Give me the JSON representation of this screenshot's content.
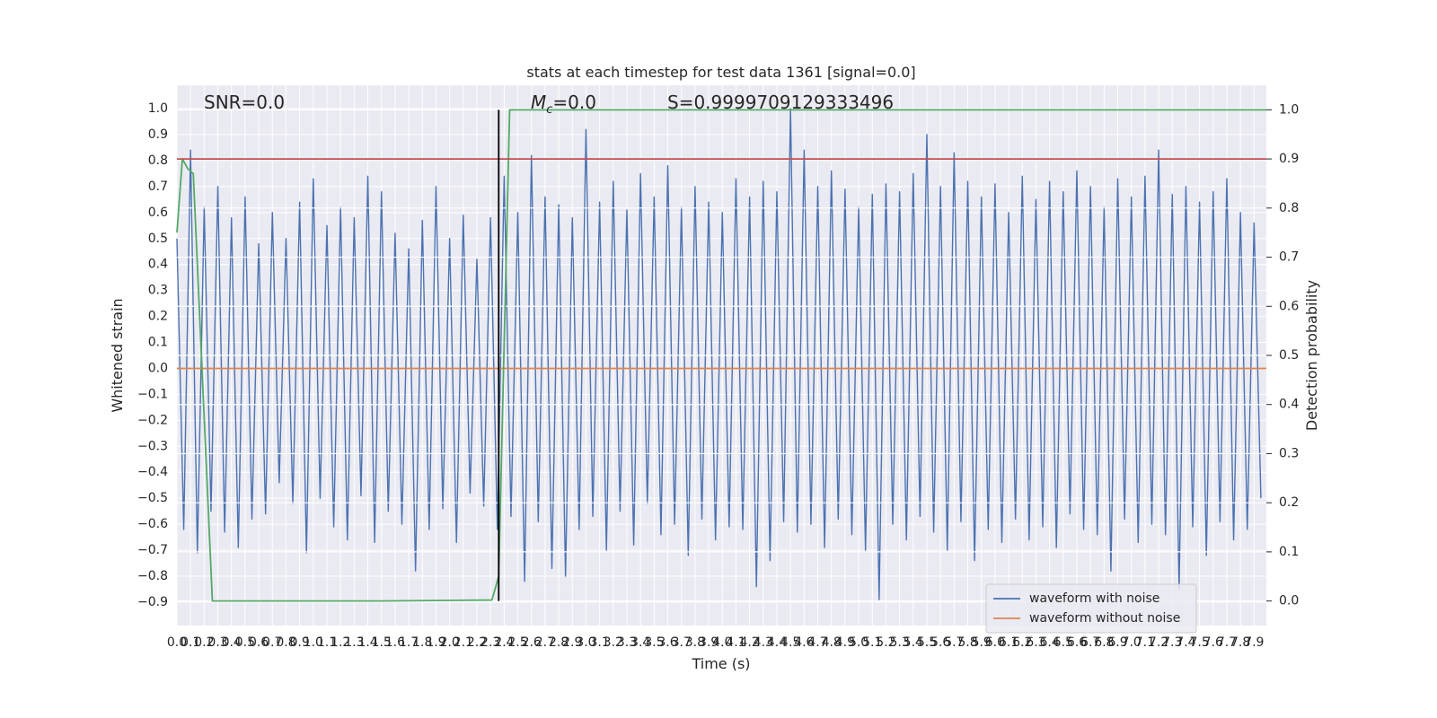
{
  "chart_data": {
    "type": "line",
    "title": "stats at each timestep for test data 1361 [signal=0.0]",
    "xlabel": "Time (s)",
    "ylabel": "Whitened strain",
    "y2label": "Detection probability",
    "annotations": [
      {
        "text": "SNR=0.0"
      },
      {
        "symbol": "M",
        "subscript": "c",
        "text": "=0.0"
      },
      {
        "text": "S=0.9999709129333496"
      }
    ],
    "xlim": [
      0,
      7.99
    ],
    "ylim": [
      -0.99,
      1.09
    ],
    "y2lim": [
      -0.05,
      1.05
    ],
    "grid": true,
    "legend": "lower right",
    "threshold": 0.9,
    "threshold_color": "#c44e52",
    "marker_x": 2.36,
    "marker_color": "#000000",
    "xticks": [
      {
        "value": 0,
        "label": "0.0"
      },
      0.1,
      0.2,
      0.3,
      0.4,
      0.5,
      0.6,
      0.7,
      0.8,
      0.9,
      {
        "value": 1,
        "label": "1.0"
      },
      1.1,
      1.2,
      1.3,
      1.4,
      1.5,
      1.6,
      1.7,
      1.8,
      1.9,
      {
        "value": 2,
        "label": "2.0"
      },
      2.1,
      2.2,
      2.3,
      2.4,
      2.5,
      2.6,
      2.7,
      2.8,
      2.9,
      {
        "value": 3,
        "label": "3.0"
      },
      3.1,
      3.2,
      3.3,
      3.4,
      3.5,
      3.6,
      3.7,
      3.8,
      3.9,
      {
        "value": 4,
        "label": "4.0"
      },
      4.1,
      4.2,
      4.3,
      4.4,
      4.5,
      4.6,
      4.7,
      4.8,
      4.9,
      {
        "value": 5,
        "label": "5.0"
      },
      5.1,
      5.2,
      5.3,
      5.4,
      5.5,
      5.6,
      5.7,
      5.8,
      5.9,
      {
        "value": 6,
        "label": "6.0"
      },
      6.1,
      6.2,
      6.3,
      6.4,
      6.5,
      6.6,
      6.7,
      6.8,
      6.9,
      {
        "value": 7,
        "label": "7.0"
      },
      7.1,
      7.2,
      7.3,
      7.4,
      7.5,
      7.6,
      7.7,
      7.8,
      7.9
    ],
    "yticks": [
      {
        "value": -0.9,
        "label": "−0.9"
      },
      {
        "value": -0.8,
        "label": "−0.8"
      },
      {
        "value": -0.7,
        "label": "−0.7"
      },
      {
        "value": -0.6,
        "label": "−0.6"
      },
      {
        "value": -0.5,
        "label": "−0.5"
      },
      {
        "value": -0.4,
        "label": "−0.4"
      },
      {
        "value": -0.3,
        "label": "−0.3"
      },
      {
        "value": -0.2,
        "label": "−0.2"
      },
      {
        "value": -0.1,
        "label": "−0.1"
      },
      {
        "value": 0,
        "label": "0.0"
      },
      0.1,
      0.2,
      0.3,
      0.4,
      0.5,
      0.6,
      0.7,
      0.8,
      0.9,
      {
        "value": 1,
        "label": "1.0"
      }
    ],
    "y2ticks": [
      {
        "value": 0,
        "label": "0.0"
      },
      0.1,
      0.2,
      0.3,
      0.4,
      0.5,
      0.6,
      0.7,
      0.8,
      0.9,
      {
        "value": 1,
        "label": "1.0"
      }
    ],
    "series": [
      {
        "name": "waveform with noise",
        "color": "#4c72b0",
        "x": [
          0,
          0.05,
          0.1,
          0.15,
          0.2,
          0.25,
          0.3,
          0.35,
          0.4,
          0.45,
          0.5,
          0.55,
          0.6,
          0.65,
          0.7,
          0.75,
          0.8,
          0.85,
          0.9,
          0.95,
          1,
          1.05,
          1.1,
          1.15,
          1.2,
          1.25,
          1.3,
          1.35,
          1.4,
          1.45,
          1.5,
          1.55,
          1.6,
          1.65,
          1.7,
          1.75,
          1.8,
          1.85,
          1.9,
          1.95,
          2,
          2.05,
          2.1,
          2.15,
          2.2,
          2.25,
          2.3,
          2.35,
          2.4,
          2.45,
          2.5,
          2.55,
          2.6,
          2.65,
          2.7,
          2.75,
          2.8,
          2.85,
          2.9,
          2.95,
          3,
          3.05,
          3.1,
          3.15,
          3.2,
          3.25,
          3.3,
          3.35,
          3.4,
          3.45,
          3.5,
          3.55,
          3.6,
          3.65,
          3.7,
          3.75,
          3.8,
          3.85,
          3.9,
          3.95,
          4,
          4.05,
          4.1,
          4.15,
          4.2,
          4.25,
          4.3,
          4.35,
          4.4,
          4.45,
          4.5,
          4.55,
          4.6,
          4.65,
          4.7,
          4.75,
          4.8,
          4.85,
          4.9,
          4.95,
          5,
          5.05,
          5.1,
          5.15,
          5.2,
          5.25,
          5.3,
          5.35,
          5.4,
          5.45,
          5.5,
          5.55,
          5.6,
          5.65,
          5.7,
          5.75,
          5.8,
          5.85,
          5.9,
          5.95,
          6,
          6.05,
          6.1,
          6.15,
          6.2,
          6.25,
          6.3,
          6.35,
          6.4,
          6.45,
          6.5,
          6.55,
          6.6,
          6.65,
          6.7,
          6.75,
          6.8,
          6.85,
          6.9,
          6.95,
          7,
          7.05,
          7.1,
          7.15,
          7.2,
          7.25,
          7.3,
          7.35,
          7.4,
          7.45,
          7.5,
          7.55,
          7.6,
          7.65,
          7.7,
          7.75,
          7.8,
          7.85,
          7.9,
          7.95
        ],
        "values": [
          0.5,
          -0.62,
          0.84,
          -0.71,
          0.62,
          -0.55,
          0.7,
          -0.63,
          0.58,
          -0.69,
          0.66,
          -0.58,
          0.48,
          -0.56,
          0.6,
          -0.44,
          0.5,
          -0.52,
          0.64,
          -0.71,
          0.73,
          -0.5,
          0.55,
          -0.61,
          0.62,
          -0.66,
          0.58,
          -0.49,
          0.74,
          -0.67,
          0.68,
          -0.55,
          0.52,
          -0.6,
          0.46,
          -0.78,
          0.57,
          -0.62,
          0.7,
          -0.54,
          0.5,
          -0.67,
          0.59,
          -0.48,
          0.42,
          -0.53,
          0.58,
          -0.62,
          0.74,
          -0.57,
          0.6,
          -0.82,
          0.82,
          -0.59,
          0.66,
          -0.77,
          0.63,
          -0.8,
          0.58,
          -0.62,
          0.92,
          -0.57,
          0.64,
          -0.7,
          0.72,
          -0.55,
          0.61,
          -0.68,
          0.75,
          -0.52,
          0.66,
          -0.64,
          0.78,
          -0.6,
          0.62,
          -0.72,
          0.7,
          -0.58,
          0.64,
          -0.66,
          0.6,
          -0.61,
          0.73,
          -0.62,
          0.66,
          -0.84,
          0.72,
          -0.74,
          0.68,
          -0.59,
          1.0,
          -0.63,
          0.84,
          -0.6,
          0.7,
          -0.69,
          0.76,
          -0.58,
          0.69,
          -0.64,
          0.62,
          -0.7,
          0.67,
          -0.89,
          0.71,
          -0.6,
          0.68,
          -0.66,
          0.75,
          -0.57,
          0.9,
          -0.63,
          0.7,
          -0.7,
          0.83,
          -0.59,
          0.72,
          -0.74,
          0.66,
          -0.62,
          0.71,
          -0.67,
          0.6,
          -0.58,
          0.74,
          -0.66,
          0.65,
          -0.61,
          0.72,
          -0.69,
          0.68,
          -0.56,
          0.76,
          -0.62,
          0.7,
          -0.64,
          0.62,
          -0.78,
          0.73,
          -0.58,
          0.66,
          -0.67,
          0.74,
          -0.6,
          0.84,
          -0.64,
          0.67,
          -0.85,
          0.7,
          -0.61,
          0.64,
          -0.72,
          0.68,
          -0.59,
          0.73,
          -0.66,
          0.6,
          -0.62,
          0.56,
          -0.5
        ]
      },
      {
        "name": "waveform without noise",
        "color": "#dd8452",
        "x": [
          0,
          7.99
        ],
        "values": [
          0,
          0
        ]
      },
      {
        "color": "#55a868",
        "axis": "y2",
        "x": [
          0,
          0.04,
          0.08,
          0.12,
          0.26,
          0.3,
          1.5,
          2.31,
          2.36,
          2.44,
          7.99
        ],
        "values": [
          0.75,
          0.9,
          0.88,
          0.87,
          0,
          0,
          0,
          0.002,
          0.05,
          1,
          1
        ]
      }
    ]
  }
}
